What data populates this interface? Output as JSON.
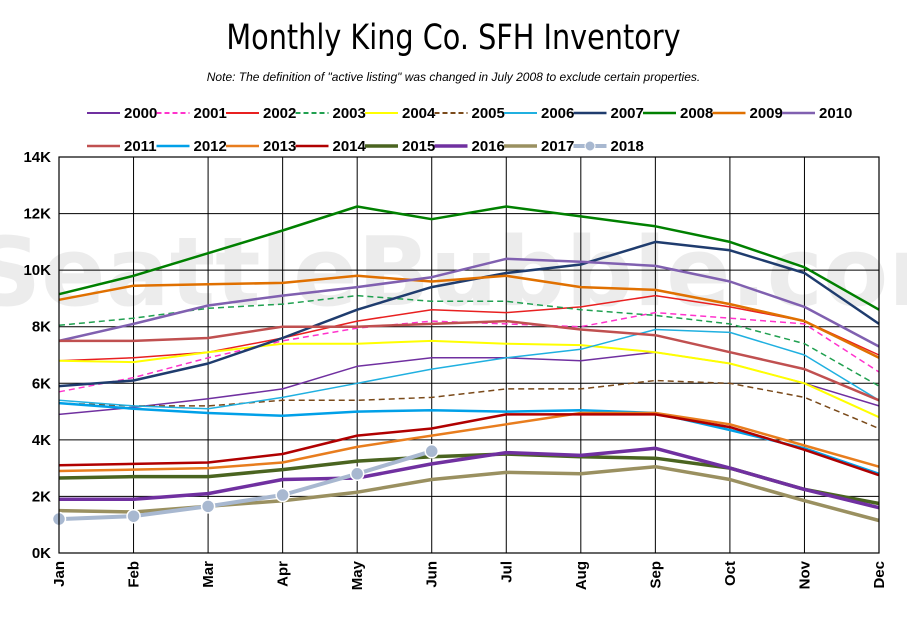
{
  "chart_data": {
    "type": "line",
    "title": "Monthly King Co. SFH Inventory",
    "subtitle": "Note: The definition of \"active listing\" was changed in July 2008 to exclude certain properties.",
    "watermark": "SeattleBubble.com",
    "x": [
      "Jan",
      "Feb",
      "Mar",
      "Apr",
      "May",
      "Jun",
      "Jul",
      "Aug",
      "Sep",
      "Oct",
      "Nov",
      "Dec"
    ],
    "y_ticks": [
      "0K",
      "2K",
      "4K",
      "6K",
      "8K",
      "10K",
      "12K",
      "14K"
    ],
    "ylim": [
      0,
      14000
    ],
    "grid": true,
    "legend_position": "top",
    "series": [
      {
        "name": "2000",
        "color": "#7030a0",
        "dash": "solid",
        "width": 1.5,
        "values": [
          4900,
          5150,
          5450,
          5800,
          6600,
          6900,
          6900,
          6800,
          7100,
          6700,
          6000,
          5200
        ]
      },
      {
        "name": "2001",
        "color": "#ff33cc",
        "dash": "dash",
        "width": 1.5,
        "values": [
          5700,
          6200,
          6900,
          7500,
          7950,
          8200,
          8100,
          8000,
          8500,
          8300,
          8100,
          6400
        ]
      },
      {
        "name": "2002",
        "color": "#e82020",
        "dash": "solid",
        "width": 1.5,
        "values": [
          6800,
          6900,
          7100,
          7600,
          8200,
          8600,
          8500,
          8700,
          9100,
          8700,
          8200,
          7000
        ]
      },
      {
        "name": "2003",
        "color": "#20a050",
        "dash": "dash",
        "width": 1.5,
        "values": [
          8050,
          8300,
          8650,
          8800,
          9100,
          8900,
          8900,
          8600,
          8400,
          8100,
          7400,
          5900
        ]
      },
      {
        "name": "2004",
        "color": "#ffff00",
        "dash": "solid",
        "width": 2,
        "values": [
          6800,
          6750,
          7100,
          7400,
          7400,
          7500,
          7400,
          7350,
          7100,
          6700,
          6000,
          4800
        ]
      },
      {
        "name": "2005",
        "color": "#7a4a1a",
        "dash": "dash",
        "width": 1.5,
        "values": [
          5300,
          5200,
          5200,
          5400,
          5400,
          5500,
          5800,
          5800,
          6100,
          6000,
          5500,
          4400
        ]
      },
      {
        "name": "2006",
        "color": "#20b0e0",
        "dash": "solid",
        "width": 1.5,
        "values": [
          5400,
          5200,
          5100,
          5500,
          6000,
          6500,
          6900,
          7200,
          7900,
          7800,
          7000,
          5400
        ]
      },
      {
        "name": "2007",
        "color": "#1f3c6e",
        "dash": "solid",
        "width": 2.5,
        "values": [
          5900,
          6100,
          6700,
          7600,
          8600,
          9400,
          9900,
          10200,
          11000,
          10700,
          9900,
          8100
        ]
      },
      {
        "name": "2008",
        "color": "#008000",
        "dash": "solid",
        "width": 2.5,
        "values": [
          9150,
          9800,
          10600,
          11400,
          12250,
          11800,
          12250,
          11900,
          11550,
          11000,
          10100,
          8600
        ]
      },
      {
        "name": "2009",
        "color": "#e07000",
        "dash": "solid",
        "width": 2.5,
        "values": [
          8950,
          9450,
          9500,
          9550,
          9800,
          9600,
          9800,
          9400,
          9300,
          8800,
          8200,
          6900
        ]
      },
      {
        "name": "2010",
        "color": "#8060b0",
        "dash": "solid",
        "width": 2.5,
        "values": [
          7500,
          8100,
          8750,
          9100,
          9400,
          9750,
          10400,
          10300,
          10150,
          9600,
          8700,
          7300
        ]
      },
      {
        "name": "2011",
        "color": "#c05050",
        "dash": "solid",
        "width": 2.5,
        "values": [
          7500,
          7500,
          7600,
          8000,
          8000,
          8100,
          8200,
          7900,
          7700,
          7100,
          6500,
          5400
        ]
      },
      {
        "name": "2012",
        "color": "#00a0e8",
        "dash": "solid",
        "width": 2.5,
        "values": [
          5300,
          5100,
          4950,
          4850,
          5000,
          5050,
          5000,
          5050,
          4950,
          4350,
          3700,
          2800
        ]
      },
      {
        "name": "2013",
        "color": "#e87d1e",
        "dash": "solid",
        "width": 2.5,
        "values": [
          2900,
          2950,
          3000,
          3200,
          3750,
          4150,
          4550,
          4950,
          4950,
          4550,
          3800,
          3050
        ]
      },
      {
        "name": "2014",
        "color": "#b00000",
        "dash": "solid",
        "width": 2.5,
        "values": [
          3100,
          3150,
          3200,
          3500,
          4150,
          4400,
          4900,
          4900,
          4900,
          4450,
          3650,
          2750
        ]
      },
      {
        "name": "2015",
        "color": "#4a6420",
        "dash": "solid",
        "width": 3.5,
        "values": [
          2650,
          2700,
          2700,
          2950,
          3250,
          3400,
          3500,
          3400,
          3350,
          3000,
          2250,
          1750
        ]
      },
      {
        "name": "2016",
        "color": "#7030a0",
        "dash": "solid",
        "width": 3.5,
        "values": [
          1900,
          1900,
          2100,
          2600,
          2650,
          3150,
          3550,
          3450,
          3700,
          3000,
          2250,
          1600
        ]
      },
      {
        "name": "2017",
        "color": "#9a9060",
        "dash": "solid",
        "width": 3.5,
        "values": [
          1500,
          1450,
          1650,
          1850,
          2150,
          2600,
          2850,
          2800,
          3050,
          2600,
          1850,
          1150
        ]
      },
      {
        "name": "2018",
        "color": "#a8b8d0",
        "dash": "solid",
        "width": 4,
        "marker": true,
        "values": [
          1200,
          1300,
          1650,
          2050,
          2800,
          3600,
          null,
          null,
          null,
          null,
          null,
          null
        ]
      }
    ]
  }
}
